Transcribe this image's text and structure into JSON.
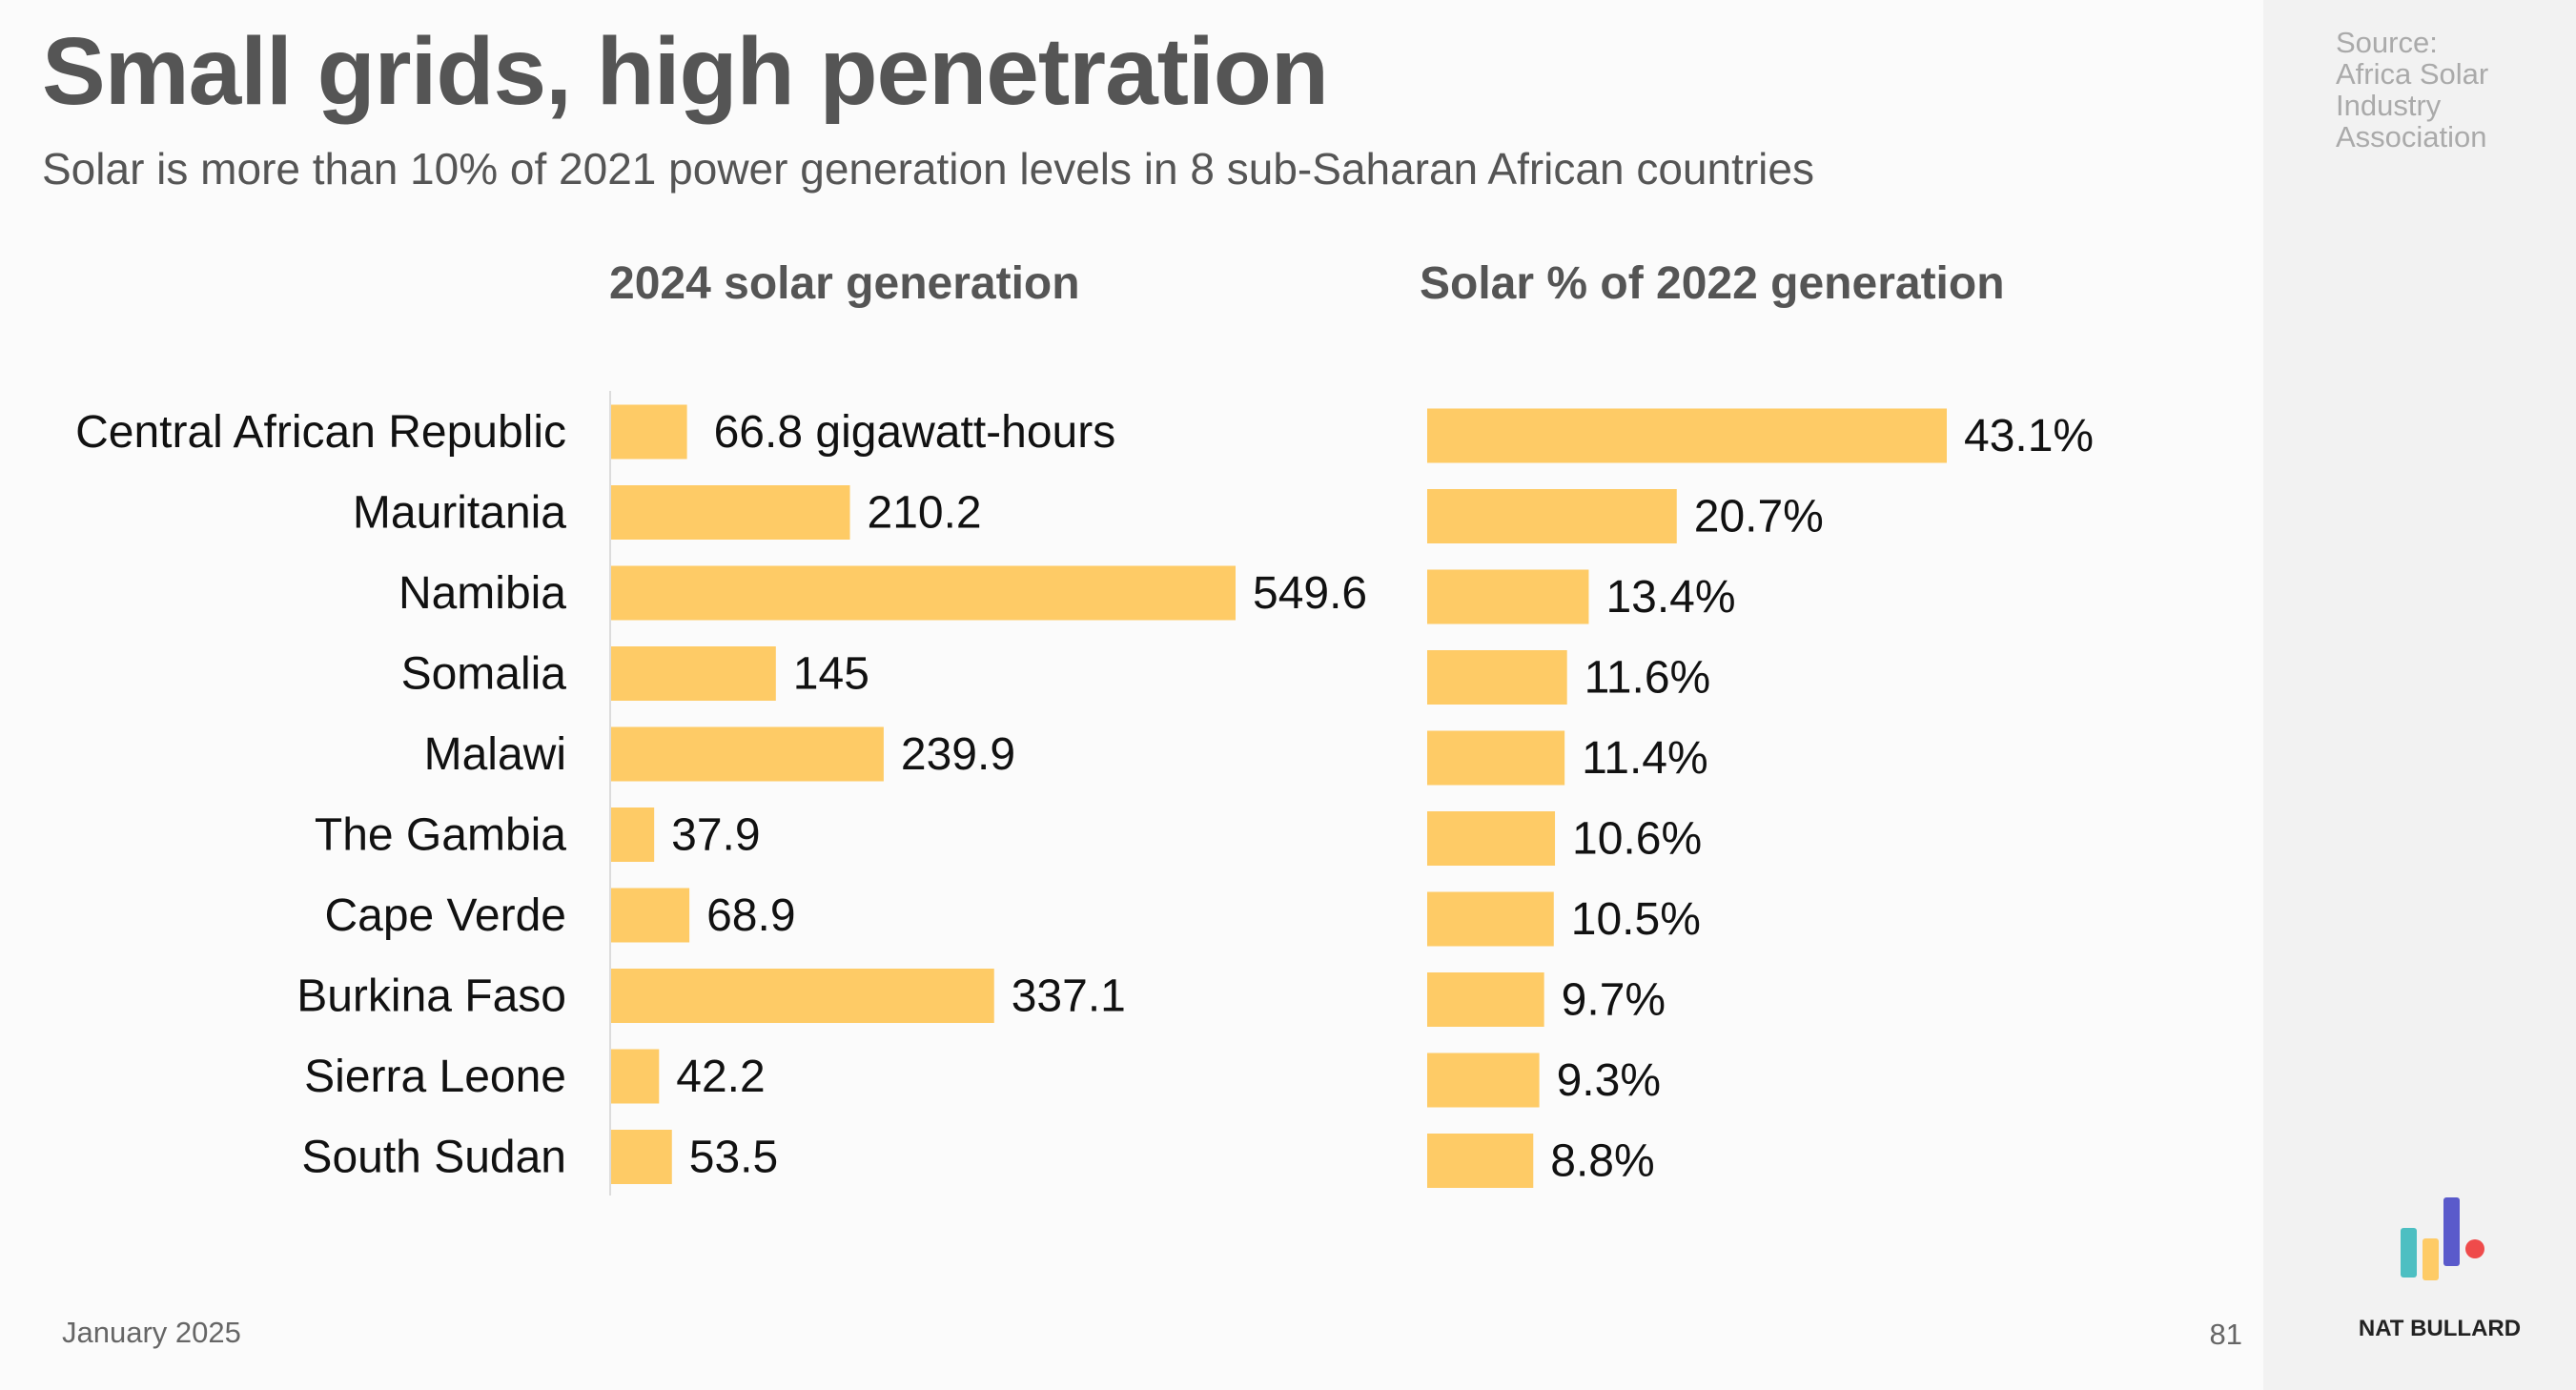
{
  "header": {
    "title": "Small grids, high penetration",
    "subtitle": "Solar is more than 10% of 2021 power generation levels in 8 sub-Saharan African countries"
  },
  "source": [
    "Source:",
    "Africa Solar",
    "Industry",
    "Association"
  ],
  "footer": {
    "date": "January 2025",
    "page": "81",
    "brand": "NAT BULLARD"
  },
  "colors": {
    "bar": "#FECB66",
    "logo": [
      "#4DBFC2",
      "#FECB66",
      "#5A5ACB",
      "#EF4B4B"
    ]
  },
  "chart_data": [
    {
      "type": "bar",
      "orientation": "horizontal",
      "title": "2024 solar generation",
      "unit": "gigawatt-hours",
      "categories": [
        "Central African Republic",
        "Mauritania",
        "Namibia",
        "Somalia",
        "Malawi",
        "The Gambia",
        "Cape Verde",
        "Burkina Faso",
        "Sierra Leone",
        "South Sudan"
      ],
      "values": [
        66.8,
        210.2,
        549.6,
        145,
        239.9,
        37.9,
        68.9,
        337.1,
        42.2,
        53.5
      ],
      "labels": [
        "66.8 gigawatt-hours",
        "210.2",
        "549.6",
        "145",
        "239.9",
        "37.9",
        "68.9",
        "337.1",
        "42.2",
        "53.5"
      ],
      "xlim": [
        0,
        549.6
      ]
    },
    {
      "type": "bar",
      "orientation": "horizontal",
      "title": "Solar % of 2022 generation",
      "unit": "%",
      "categories": [
        "Central African Republic",
        "Mauritania",
        "Namibia",
        "Somalia",
        "Malawi",
        "The Gambia",
        "Cape Verde",
        "Burkina Faso",
        "Sierra Leone",
        "South Sudan"
      ],
      "values": [
        43.1,
        20.7,
        13.4,
        11.6,
        11.4,
        10.6,
        10.5,
        9.7,
        9.3,
        8.8
      ],
      "labels": [
        "43.1%",
        "20.7%",
        "13.4%",
        "11.6%",
        "11.4%",
        "10.6%",
        "10.5%",
        "9.7%",
        "9.3%",
        "8.8%"
      ],
      "xlim": [
        0,
        43.1
      ]
    }
  ]
}
